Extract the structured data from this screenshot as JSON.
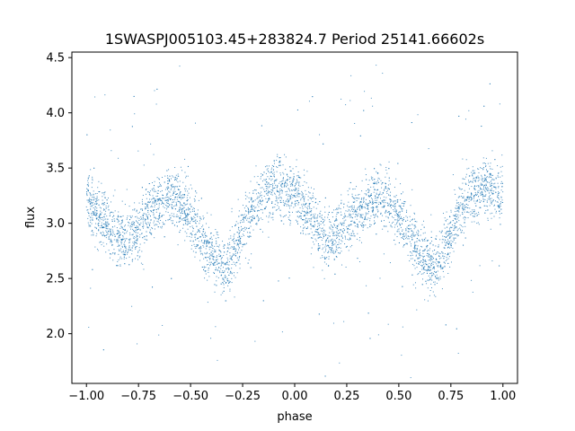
{
  "chart_data": {
    "type": "scatter",
    "title": "1SWASPJ005103.45+283824.7 Period 25141.66602s",
    "xlabel": "phase",
    "ylabel": "flux",
    "xlim": [
      -1.07,
      1.07
    ],
    "ylim": [
      1.55,
      4.55
    ],
    "xticks": [
      -1.0,
      -0.75,
      -0.5,
      -0.25,
      0.0,
      0.25,
      0.5,
      0.75,
      1.0
    ],
    "xtick_labels": [
      "−1.00",
      "−0.75",
      "−0.50",
      "−0.25",
      "0.00",
      "0.25",
      "0.50",
      "0.75",
      "1.00"
    ],
    "yticks": [
      2.0,
      2.5,
      3.0,
      3.5,
      4.0,
      4.5
    ],
    "ytick_labels": [
      "2.0",
      "2.5",
      "3.0",
      "3.5",
      "4.0",
      "4.5"
    ],
    "grid": false,
    "legend": "none",
    "marker_color": "#1f77b4",
    "series": [
      {
        "x": [
          -1.0,
          -0.95,
          -0.9,
          -0.85,
          -0.8,
          -0.75,
          -0.7,
          -0.65,
          -0.6,
          -0.55,
          -0.5,
          -0.45,
          -0.4,
          -0.35,
          -0.33,
          -0.3,
          -0.25,
          -0.2,
          -0.15,
          -0.1,
          -0.05,
          0.0,
          0.05,
          0.1,
          0.15,
          0.18,
          0.2,
          0.25,
          0.3,
          0.35,
          0.4,
          0.45,
          0.5,
          0.55,
          0.6,
          0.65,
          0.67,
          0.7,
          0.75,
          0.8,
          0.85,
          0.9,
          0.95,
          1.0
        ],
        "y": [
          3.2,
          3.1,
          2.98,
          2.88,
          2.85,
          2.95,
          3.1,
          3.2,
          3.25,
          3.2,
          3.05,
          2.88,
          2.72,
          2.62,
          2.6,
          2.68,
          2.92,
          3.12,
          3.28,
          3.35,
          3.3,
          3.22,
          3.12,
          2.98,
          2.87,
          2.85,
          2.9,
          3.02,
          3.12,
          3.2,
          3.25,
          3.2,
          3.05,
          2.88,
          2.72,
          2.62,
          2.6,
          2.68,
          2.92,
          3.12,
          3.26,
          3.33,
          3.3,
          3.25
        ]
      }
    ]
  }
}
